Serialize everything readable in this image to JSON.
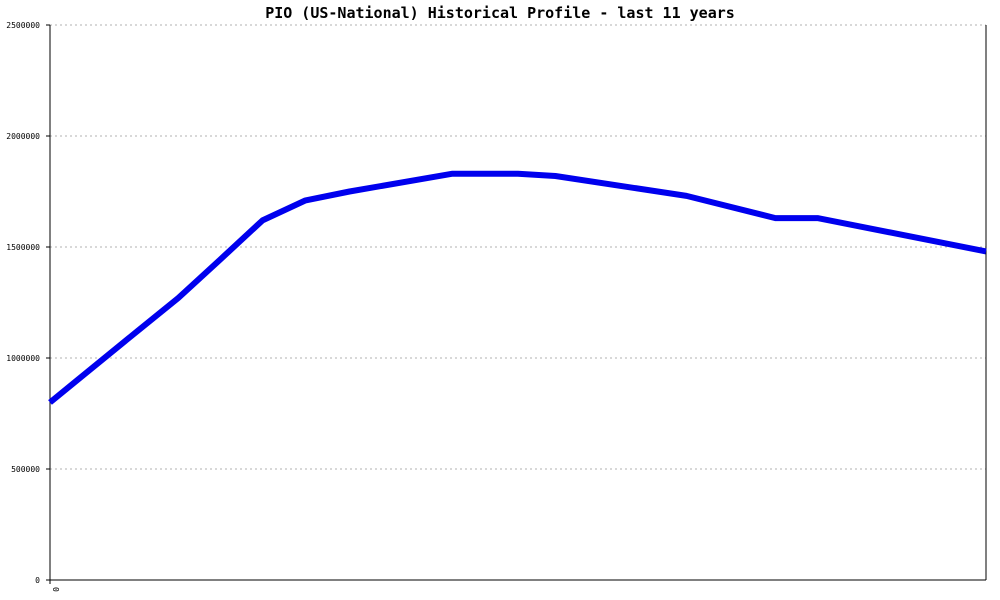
{
  "chart_data": {
    "type": "line",
    "title": "PIO (US-National) Historical Profile - last 11 years",
    "xlabel": "",
    "ylabel": "",
    "ylim": [
      0,
      2500000
    ],
    "y_ticks": [
      "0",
      "500000",
      "1000000",
      "1500000",
      "2000000",
      "2500000"
    ],
    "x_ticks": [
      "0"
    ],
    "grid": "horizontal-dotted",
    "legend": "none",
    "x": [
      0,
      0.093,
      0.137,
      0.181,
      0.227,
      0.273,
      0.32,
      0.43,
      0.5,
      0.54,
      0.68,
      0.775,
      0.82,
      1.0
    ],
    "series": [
      {
        "values": [
          800000,
          1120000,
          1270000,
          1440000,
          1620000,
          1710000,
          1750000,
          1830000,
          1830000,
          1820000,
          1730000,
          1630000,
          1630000,
          1480000
        ],
        "color": "#0000ee"
      }
    ]
  }
}
